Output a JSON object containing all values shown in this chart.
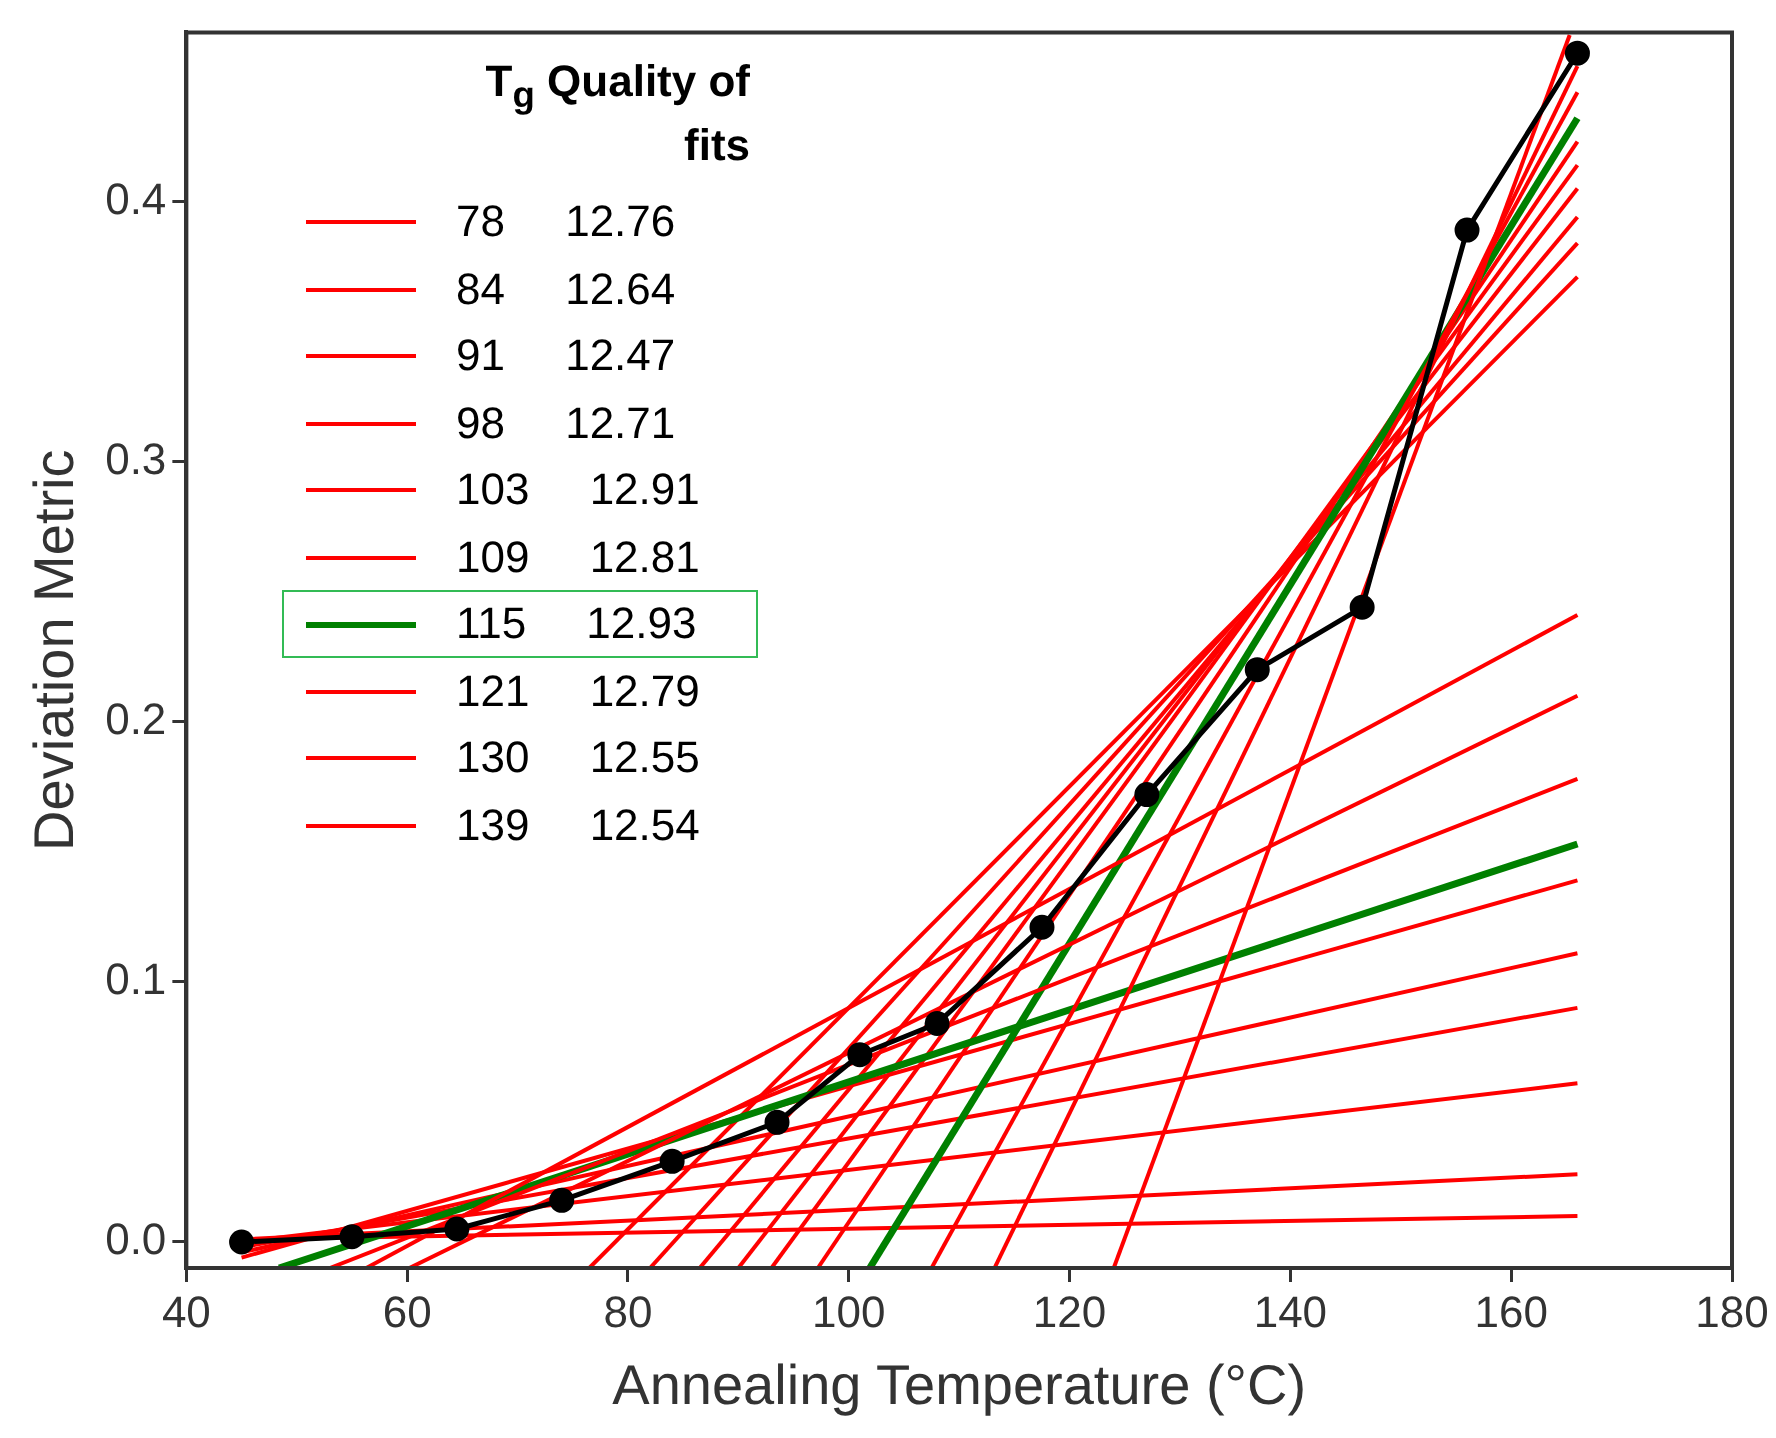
{
  "chart_data": {
    "type": "line",
    "xlabel": "Annealing Temperature (°C)",
    "ylabel": "Deviation Metric",
    "legend_title": "T$_{g}$ Quality of fits",
    "xlim": [
      40,
      180
    ],
    "xticks": [
      40,
      60,
      80,
      100,
      120,
      140,
      160,
      180
    ],
    "ylim": [
      -0.01,
      0.465
    ],
    "yticks": [
      {
        "value": 0,
        "label": "0.0"
      },
      {
        "value": 0.1,
        "label": "0.1"
      },
      {
        "value": 0.2,
        "label": "0.2"
      },
      {
        "value": 0.3,
        "label": "0.3"
      },
      {
        "value": 0.4,
        "label": "0.4"
      }
    ],
    "grid": false,
    "legend": "top left",
    "marker": "none",
    "line_style": "solid",
    "series": [
      {
        "name": "78 12.76",
        "color": "#ff0000",
        "x": [
          45,
          166
        ],
        "values": [
          0.001,
          0.01
        ]
      },
      {
        "color": "#ff0000",
        "x": [
          76.5,
          166
        ],
        "values": [
          -0.01,
          0.371
        ]
      },
      {
        "name": "84 12.64",
        "color": "#ff0000",
        "x": [
          45,
          166
        ],
        "values": [
          0.001,
          0.026
        ]
      },
      {
        "color": "#ff0000",
        "x": [
          82,
          166
        ],
        "values": [
          -0.01,
          0.384
        ]
      },
      {
        "name": "91 12.47",
        "color": "#ff0000",
        "x": [
          45,
          166
        ],
        "values": [
          0.0,
          0.061
        ]
      },
      {
        "color": "#ff0000",
        "x": [
          86.5,
          166
        ],
        "values": [
          -0.01,
          0.394
        ]
      },
      {
        "name": "98 12.71",
        "color": "#ff0000",
        "x": [
          45,
          166
        ],
        "values": [
          -0.002,
          0.09
        ]
      },
      {
        "color": "#ff0000",
        "x": [
          90,
          166
        ],
        "values": [
          -0.01,
          0.405
        ]
      },
      {
        "name": "103 12.91",
        "color": "#ff0000",
        "x": [
          45,
          166
        ],
        "values": [
          -0.004,
          0.111
        ]
      },
      {
        "color": "#ff0000",
        "x": [
          93,
          166
        ],
        "values": [
          -0.01,
          0.414
        ]
      },
      {
        "name": "109 12.81",
        "color": "#ff0000",
        "x": [
          45,
          166
        ],
        "values": [
          -0.006,
          0.139
        ]
      },
      {
        "color": "#ff0000",
        "x": [
          97.2,
          166
        ],
        "values": [
          -0.01,
          0.423
        ]
      },
      {
        "name": "115 12.93",
        "color": "#008000",
        "x": [
          48.4,
          166
        ],
        "values": [
          -0.01,
          0.153
        ]
      },
      {
        "color": "#008000",
        "x": [
          101.9,
          166
        ],
        "values": [
          -0.01,
          0.432
        ]
      },
      {
        "name": "121 12.79",
        "color": "#ff0000",
        "x": [
          53,
          166
        ],
        "values": [
          -0.01,
          0.178
        ]
      },
      {
        "color": "#ff0000",
        "x": [
          107.5,
          166
        ],
        "values": [
          -0.01,
          0.442
        ]
      },
      {
        "name": "130 12.55",
        "color": "#ff0000",
        "x": [
          60.2,
          166
        ],
        "values": [
          -0.01,
          0.21
        ]
      },
      {
        "color": "#ff0000",
        "x": [
          113.2,
          166
        ],
        "values": [
          -0.01,
          0.452
        ]
      },
      {
        "name": "139 12.54",
        "color": "#ff0000",
        "x": [
          56.3,
          166
        ],
        "values": [
          -0.01,
          0.241
        ]
      },
      {
        "color": "#ff0000",
        "x": [
          124,
          165.3
        ],
        "values": [
          -0.01,
          0.464
        ]
      },
      {
        "color": "#000000",
        "marker": "circle",
        "x": [
          45,
          55,
          64.5,
          74,
          84,
          93.5,
          101,
          108,
          117.5,
          127,
          137,
          146.5,
          156,
          166
        ],
        "values": [
          0.0,
          0.002,
          0.005,
          0.016,
          0.031,
          0.046,
          0.072,
          0.084,
          0.121,
          0.172,
          0.22,
          0.244,
          0.389,
          0.457
        ]
      }
    ]
  }
}
